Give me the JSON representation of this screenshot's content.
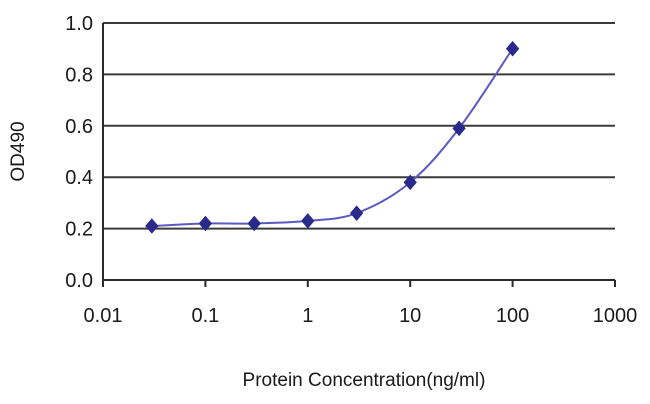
{
  "chart_data": {
    "type": "line",
    "xlabel": "Protein Concentration(ng/ml)",
    "ylabel": "OD490",
    "x_scale": "log",
    "xlim": [
      0.01,
      1000
    ],
    "ylim": [
      0,
      1.0
    ],
    "grid": "horizontal",
    "x_ticks": [
      "0.01",
      "0.1",
      "1",
      "10",
      "100",
      "1000"
    ],
    "y_ticks": [
      "0.0",
      "0.2",
      "0.4",
      "0.6",
      "0.8",
      "1.0"
    ],
    "series": [
      {
        "x": [
          0.03,
          0.1,
          0.3,
          1,
          3,
          10,
          30,
          100
        ],
        "y": [
          0.21,
          0.22,
          0.22,
          0.23,
          0.26,
          0.38,
          0.59,
          0.9
        ],
        "marker": "diamond",
        "color": "#2a2a8c",
        "line_color": "#5a5ac0"
      }
    ]
  }
}
